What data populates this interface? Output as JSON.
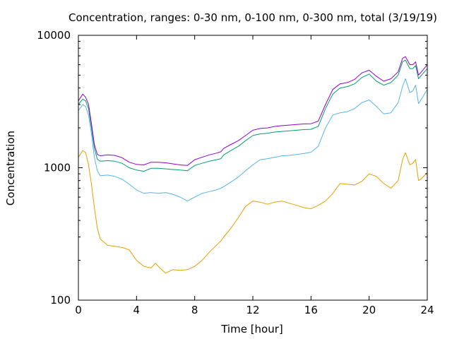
{
  "chart_data": {
    "type": "line",
    "title": "Concentration, ranges: 0-30 nm, 0-100 nm, 0-300 nm, total (3/19/19)",
    "xlabel": "Time [hour]",
    "ylabel": "Concentration",
    "xlim": [
      0,
      24
    ],
    "ylim": [
      100,
      10000
    ],
    "yscale": "log",
    "grid": false,
    "x_ticks": [
      0,
      4,
      8,
      12,
      16,
      20,
      24
    ],
    "x_tick_labels": [
      "0",
      "4",
      "8",
      "12",
      "16",
      "20",
      "24"
    ],
    "y_ticks": [
      100,
      1000,
      10000
    ],
    "y_tick_labels": [
      "100",
      "1000",
      "10000"
    ],
    "series": [
      {
        "color": "#e69f00",
        "x": [
          0,
          0.3,
          0.5,
          0.7,
          0.9,
          1.1,
          1.3,
          1.5,
          2,
          2.5,
          3,
          3.5,
          4,
          4.5,
          5,
          5.3,
          5.6,
          6,
          6.5,
          7,
          7.5,
          8,
          8.5,
          9,
          9.5,
          9.8,
          10,
          10.5,
          11,
          11.5,
          12,
          12.5,
          13,
          13.5,
          14,
          14.5,
          15,
          15.5,
          16,
          16.5,
          17,
          17.5,
          18,
          18.5,
          19,
          19.5,
          20,
          20.5,
          21,
          21.5,
          22,
          22.3,
          22.5,
          22.8,
          23,
          23.2,
          23.4,
          23.6,
          24
        ],
        "values": [
          1200,
          1350,
          1300,
          1050,
          750,
          500,
          350,
          290,
          260,
          255,
          250,
          240,
          200,
          180,
          175,
          190,
          175,
          160,
          170,
          168,
          170,
          180,
          200,
          230,
          260,
          280,
          300,
          350,
          420,
          510,
          560,
          550,
          530,
          550,
          560,
          540,
          520,
          500,
          490,
          520,
          560,
          640,
          760,
          750,
          740,
          790,
          900,
          860,
          760,
          700,
          800,
          1150,
          1300,
          1050,
          1080,
          1150,
          800,
          830,
          920
        ]
      },
      {
        "color": "#56b4e9",
        "x": [
          0,
          0.3,
          0.5,
          0.7,
          0.9,
          1.1,
          1.3,
          1.5,
          2,
          2.5,
          3,
          3.5,
          4,
          4.5,
          5,
          5.5,
          6,
          6.5,
          7,
          7.5,
          8,
          8.5,
          9,
          9.5,
          9.8,
          10,
          10.5,
          11,
          11.5,
          12,
          12.5,
          13,
          13.5,
          14,
          14.5,
          15,
          15.5,
          16,
          16.5,
          17,
          17.5,
          18,
          18.5,
          19,
          19.5,
          20,
          20.5,
          21,
          21.5,
          22,
          22.3,
          22.5,
          22.8,
          23,
          23.2,
          23.4,
          23.6,
          24
        ],
        "values": [
          2700,
          3000,
          2900,
          2500,
          1800,
          1200,
          950,
          870,
          880,
          860,
          820,
          750,
          680,
          640,
          650,
          640,
          650,
          630,
          600,
          560,
          600,
          640,
          660,
          680,
          700,
          720,
          780,
          850,
          950,
          1050,
          1150,
          1170,
          1200,
          1230,
          1240,
          1260,
          1280,
          1310,
          1450,
          2000,
          2500,
          2600,
          2650,
          2800,
          3100,
          3250,
          2900,
          2550,
          2600,
          3100,
          4100,
          4700,
          3700,
          3800,
          4200,
          3050,
          3300,
          3900
        ]
      },
      {
        "color": "#009e73",
        "x": [
          0,
          0.3,
          0.5,
          0.7,
          0.9,
          1.1,
          1.3,
          1.5,
          2,
          2.5,
          3,
          3.5,
          4,
          4.5,
          5,
          5.5,
          6,
          6.5,
          7,
          7.5,
          8,
          8.5,
          9,
          9.5,
          9.8,
          10,
          10.5,
          11,
          11.5,
          12,
          12.5,
          13,
          13.5,
          14,
          14.5,
          15,
          15.5,
          16,
          16.5,
          17,
          17.5,
          18,
          18.5,
          19,
          19.5,
          20,
          20.5,
          21,
          21.5,
          22,
          22.3,
          22.5,
          22.8,
          23,
          23.2,
          23.4,
          23.6,
          24
        ],
        "values": [
          3000,
          3300,
          3200,
          2800,
          2000,
          1400,
          1160,
          1120,
          1130,
          1120,
          1080,
          1000,
          960,
          940,
          990,
          990,
          980,
          970,
          960,
          950,
          1040,
          1080,
          1120,
          1150,
          1170,
          1250,
          1350,
          1450,
          1600,
          1750,
          1800,
          1820,
          1860,
          1880,
          1900,
          1920,
          1940,
          1950,
          2050,
          2800,
          3600,
          4000,
          4100,
          4300,
          4800,
          5100,
          4500,
          4200,
          4400,
          5000,
          6300,
          6500,
          5600,
          5600,
          5900,
          4700,
          5000,
          5600
        ]
      },
      {
        "color": "#9400d3",
        "x": [
          0,
          0.3,
          0.5,
          0.7,
          0.9,
          1.1,
          1.3,
          1.5,
          2,
          2.5,
          3,
          3.5,
          4,
          4.5,
          5,
          5.5,
          6,
          6.5,
          7,
          7.5,
          8,
          8.5,
          9,
          9.5,
          9.8,
          10,
          10.5,
          11,
          11.5,
          12,
          12.5,
          13,
          13.5,
          14,
          14.5,
          15,
          15.5,
          16,
          16.5,
          17,
          17.5,
          18,
          18.5,
          19,
          19.5,
          20,
          20.5,
          21,
          21.5,
          22,
          22.3,
          22.5,
          22.8,
          23,
          23.2,
          23.4,
          23.6,
          24
        ],
        "values": [
          3200,
          3600,
          3400,
          3000,
          2150,
          1500,
          1260,
          1230,
          1250,
          1240,
          1190,
          1100,
          1060,
          1050,
          1100,
          1100,
          1090,
          1070,
          1050,
          1040,
          1150,
          1200,
          1250,
          1290,
          1320,
          1400,
          1500,
          1600,
          1750,
          1920,
          1980,
          2000,
          2050,
          2080,
          2100,
          2120,
          2140,
          2150,
          2250,
          3000,
          3900,
          4300,
          4400,
          4650,
          5200,
          5450,
          4900,
          4500,
          4700,
          5300,
          6700,
          6900,
          6000,
          6000,
          6300,
          5000,
          5300,
          6000
        ]
      }
    ]
  }
}
